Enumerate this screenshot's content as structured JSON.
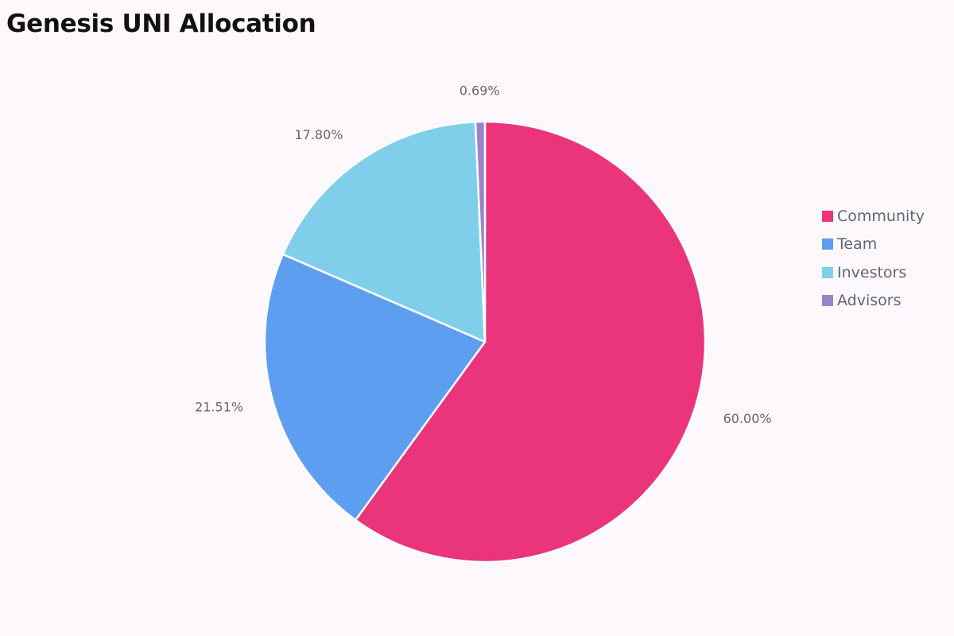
{
  "chart_data": {
    "type": "pie",
    "title": "Genesis UNI Allocation",
    "slices": [
      {
        "label": "Community",
        "value": 60.0,
        "display": "60.00%",
        "color": "#ea347b"
      },
      {
        "label": "Team",
        "value": 21.51,
        "display": "21.51%",
        "color": "#5e9ef0"
      },
      {
        "label": "Investors",
        "value": 17.8,
        "display": "17.80%",
        "color": "#7fcfeb"
      },
      {
        "label": "Advisors",
        "value": 0.69,
        "display": "0.69%",
        "color": "#9a82c9"
      }
    ],
    "start_angle": "12 o'clock",
    "direction": "clockwise",
    "legend": {
      "position": "right"
    },
    "background": "#fdf8fc"
  }
}
